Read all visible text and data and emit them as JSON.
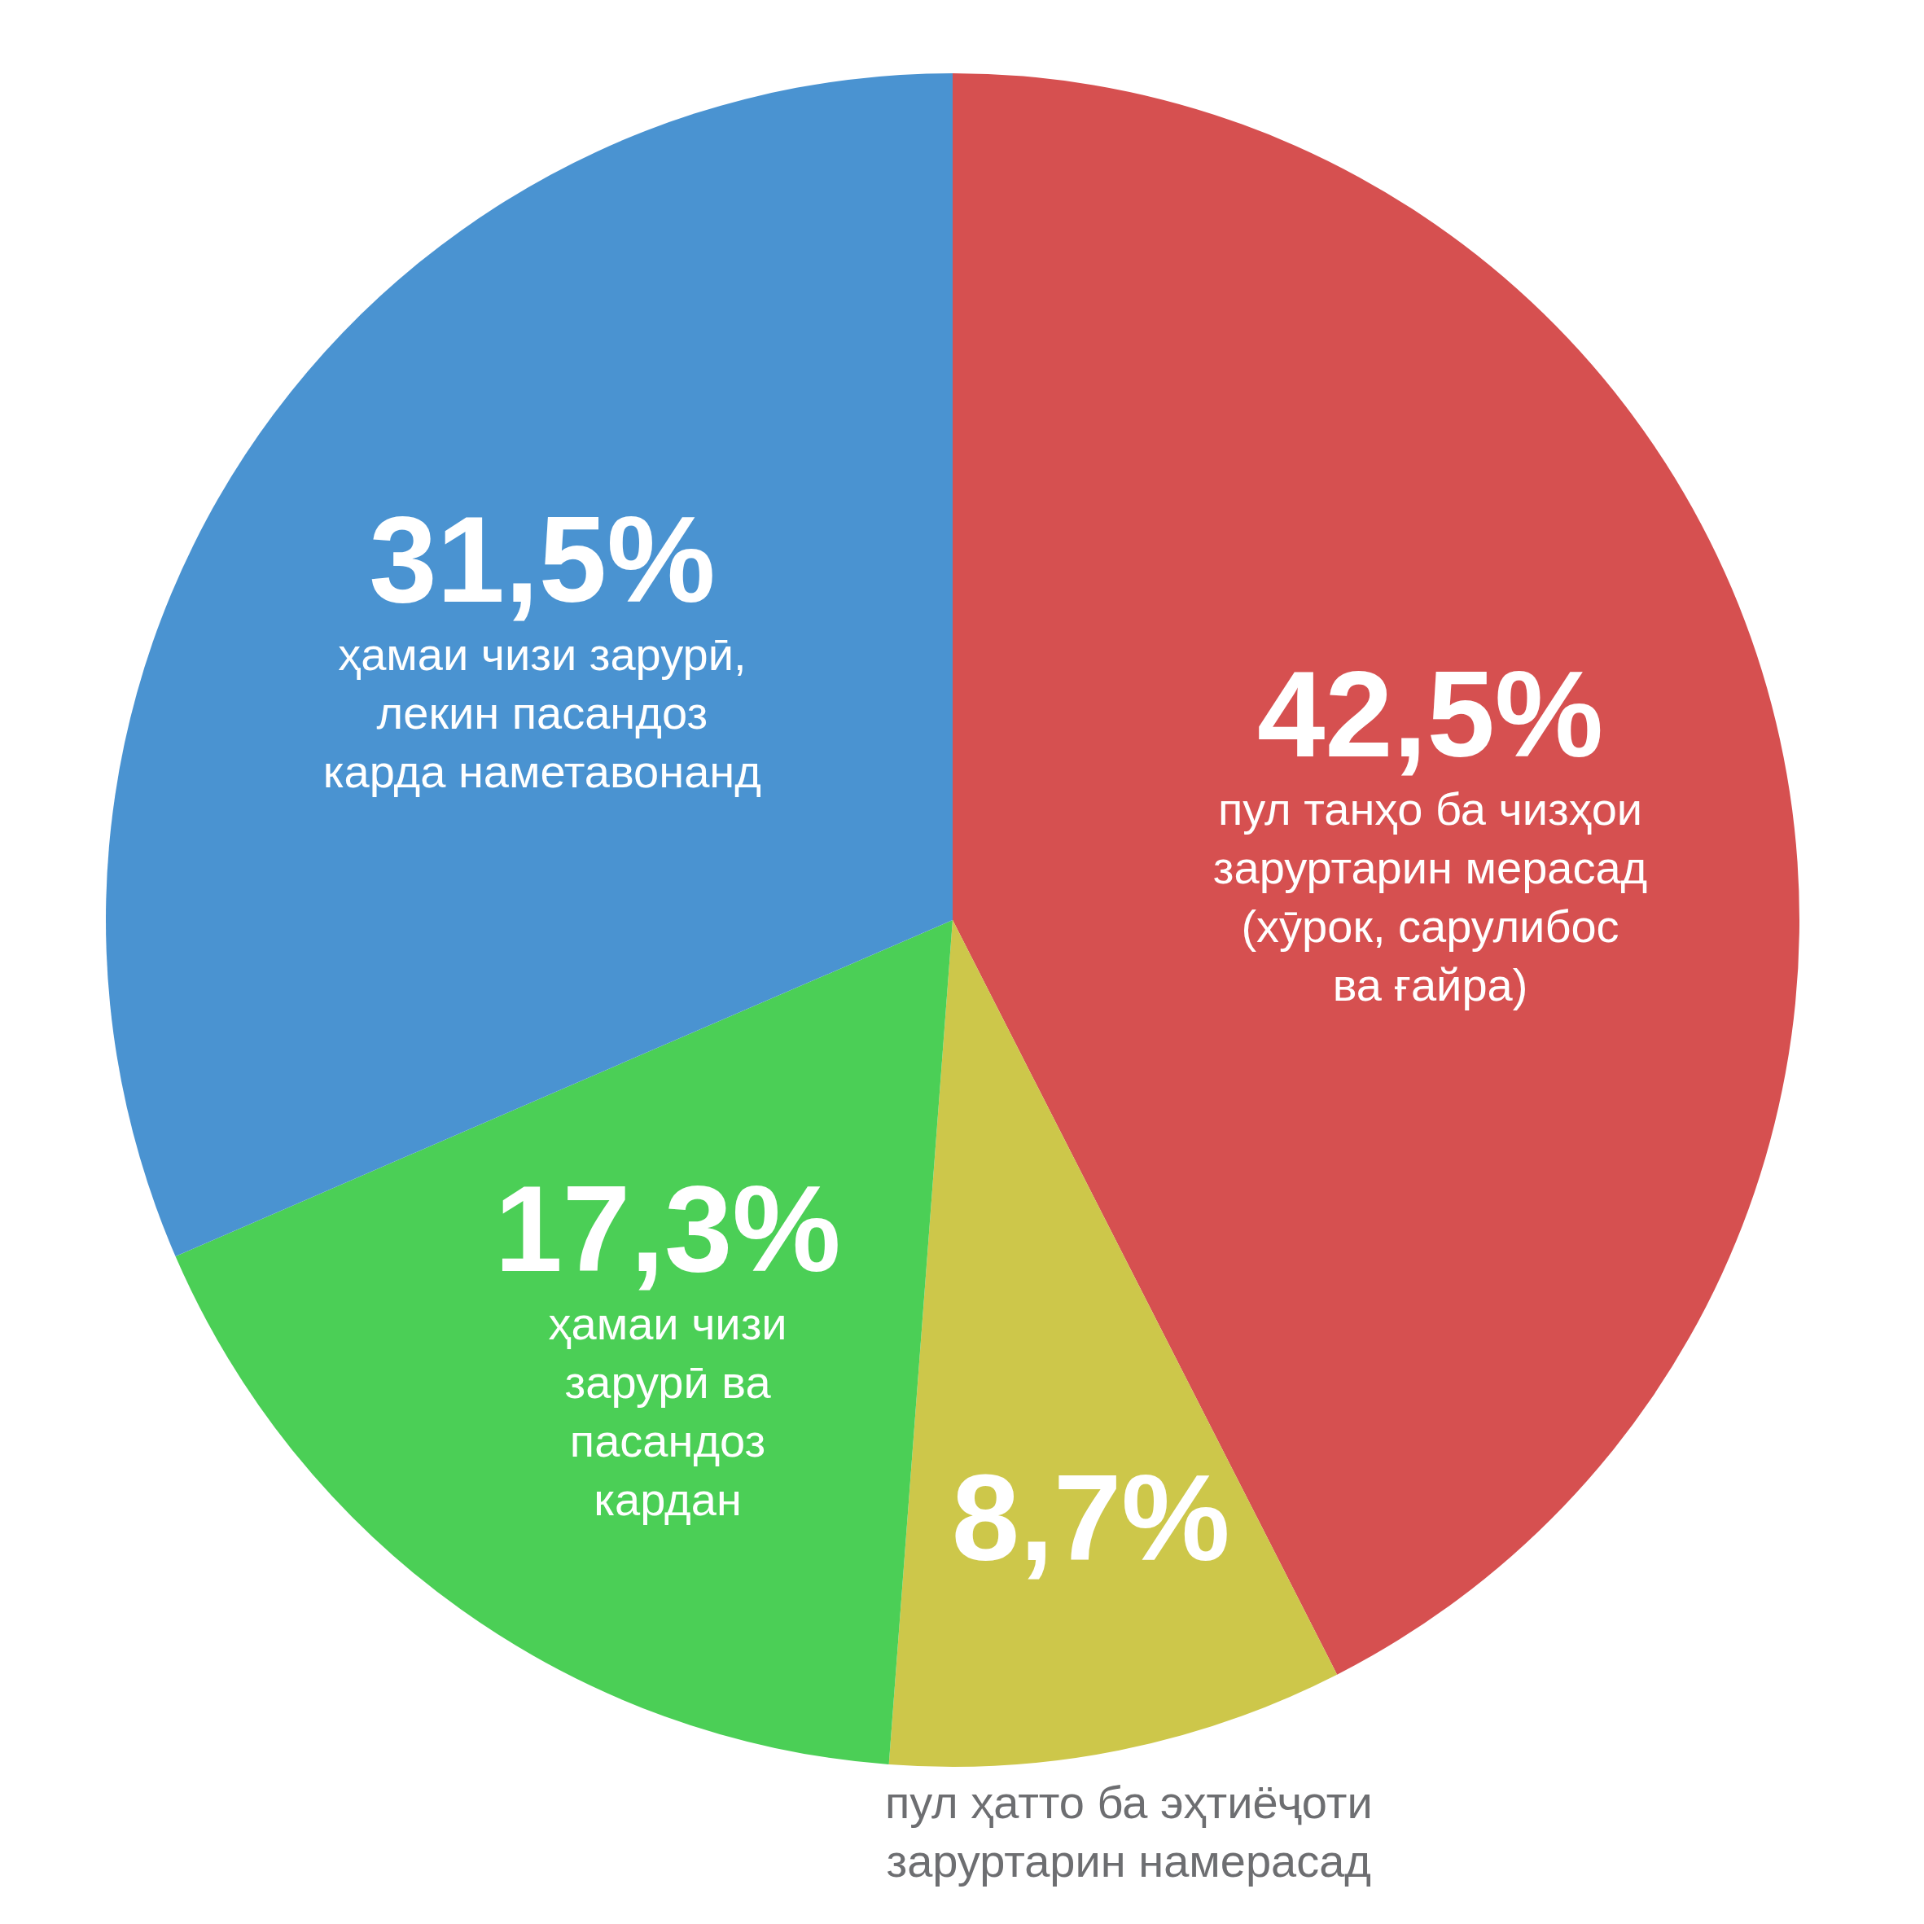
{
  "chart_data": {
    "type": "pie",
    "categories": [
      "пул танҳо ба чизҳои заруртарин мерасад (хӯрок, сарулибос ва ғайра)",
      "пул ҳатто ба эҳтиёҷоти заруртарин намерасад",
      "ҳамаи чизи зарурӣ ва пасандоз кардан",
      "ҳамаи чизи зарурӣ, лекин пасандоз карда наметавонанд"
    ],
    "values": [
      42.5,
      8.7,
      17.3,
      31.5
    ],
    "colors": [
      "#d65050",
      "#cdc74a",
      "#4bcf56",
      "#4a93d1"
    ],
    "value_labels": [
      "42,5%",
      "8,7%",
      "17,3%",
      "31,5%"
    ]
  }
}
